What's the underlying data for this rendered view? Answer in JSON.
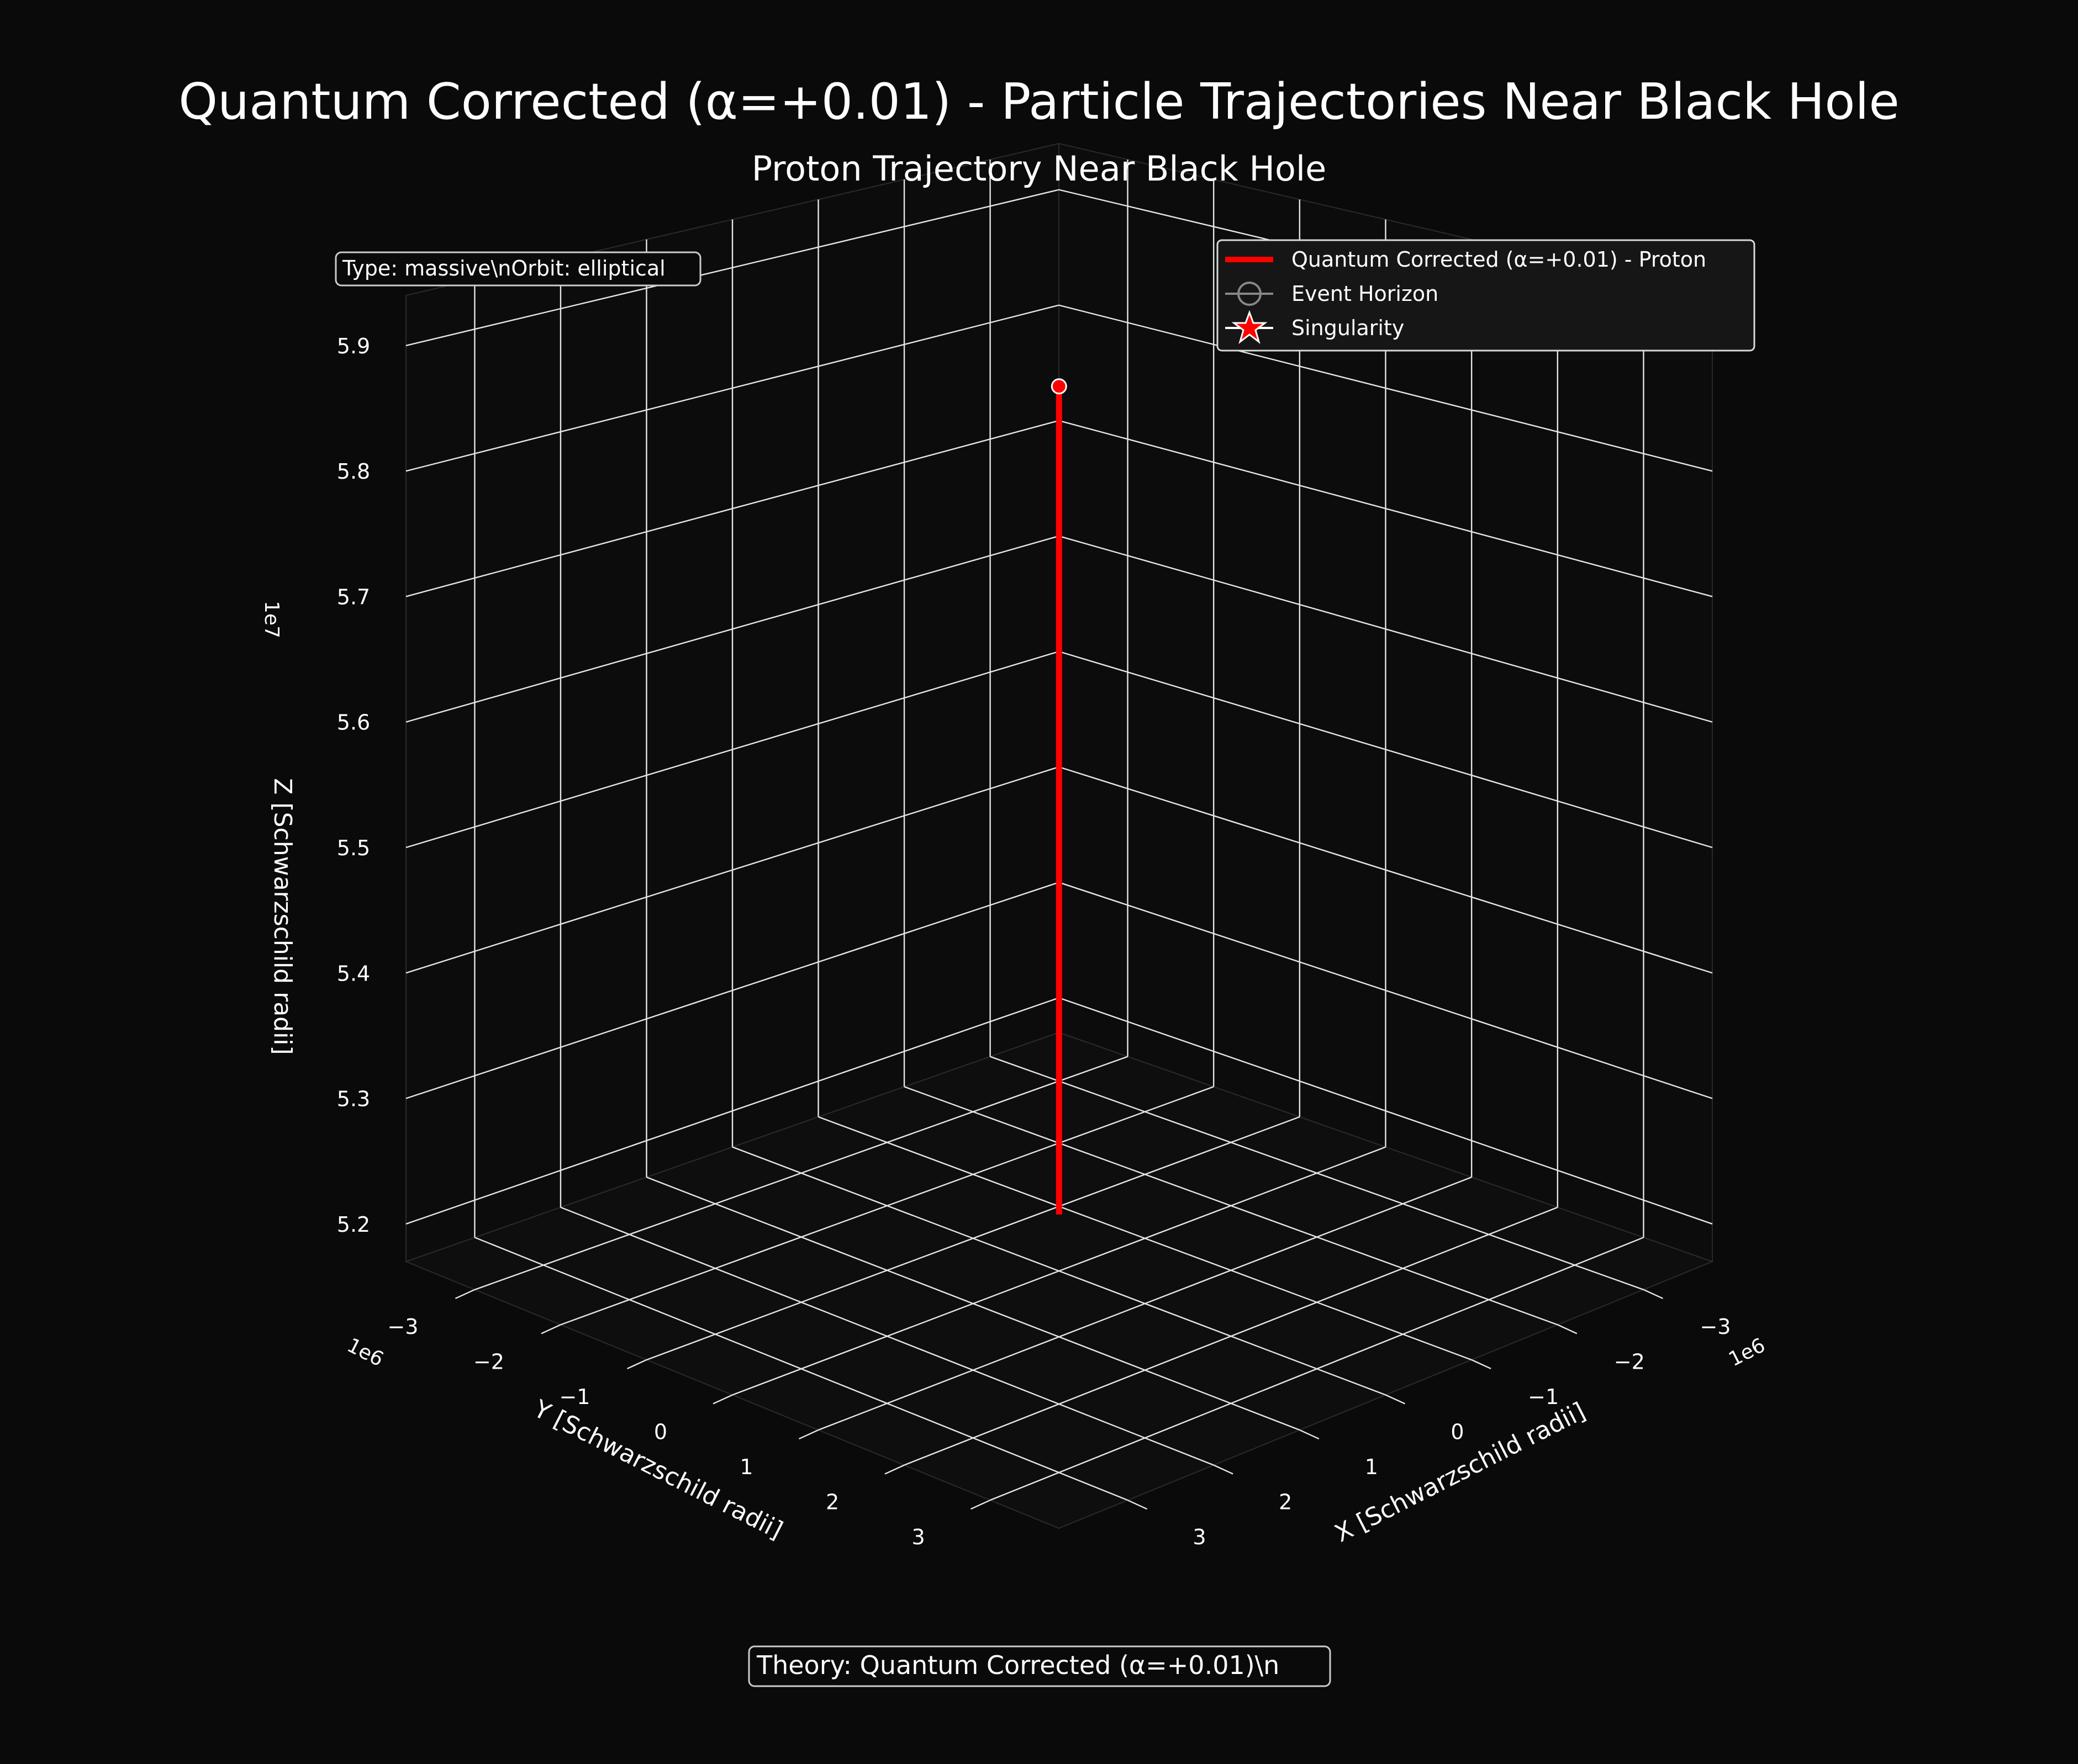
{
  "figure": {
    "title": "Quantum Corrected (α=+0.01) - Particle Trajectories Near Black Hole",
    "subtitle": "Proton Trajectory Near Black Hole",
    "info_box": "Type: massive\\nOrbit: elliptical",
    "theory_box": "Theory: Quantum Corrected (α=+0.01)\\n",
    "colors": {
      "background": "#0a0a0a",
      "grid": "#ffffff",
      "trajectory": "#ff0000",
      "horizon": "#888888"
    }
  },
  "chart_data": {
    "type": "line",
    "projection": "3d",
    "title": "Proton Trajectory Near Black Hole",
    "xlabel": "X [Schwarzschild radii]",
    "ylabel": "Y [Schwarzschild radii]",
    "zlabel": "Z [Schwarzschild radii]",
    "x_offset_label": "1e6",
    "y_offset_label": "1e6",
    "z_offset_label": "1e7",
    "x_ticks": [
      "−3",
      "−2",
      "−1",
      "0",
      "1",
      "2",
      "3"
    ],
    "y_ticks": [
      "−3",
      "−2",
      "−1",
      "0",
      "1",
      "2",
      "3"
    ],
    "z_ticks": [
      "5.2",
      "5.3",
      "5.4",
      "5.5",
      "5.6",
      "5.7",
      "5.8",
      "5.9"
    ],
    "xlim": [
      -3.8,
      3.8
    ],
    "ylim": [
      -3.8,
      3.8
    ],
    "zlim": [
      5.17,
      5.94
    ],
    "grid": true,
    "legend_position": "top-right",
    "legend": [
      {
        "label": "Quantum Corrected (α=+0.01) - Proton",
        "marker": "line",
        "color": "#ff0000"
      },
      {
        "label": "Event Horizon",
        "marker": "circle-line",
        "color": "#888888"
      },
      {
        "label": "Singularity",
        "marker": "star",
        "color": "#ff0000"
      }
    ],
    "series": [
      {
        "name": "Quantum Corrected (α=+0.01) - Proton",
        "x": [
          0,
          0
        ],
        "y": [
          0,
          0
        ],
        "z": [
          5.215,
          5.875
        ]
      }
    ],
    "markers": [
      {
        "type": "start-point",
        "x": 0,
        "y": 0,
        "z": 5.875,
        "color": "#ff0000"
      }
    ]
  }
}
